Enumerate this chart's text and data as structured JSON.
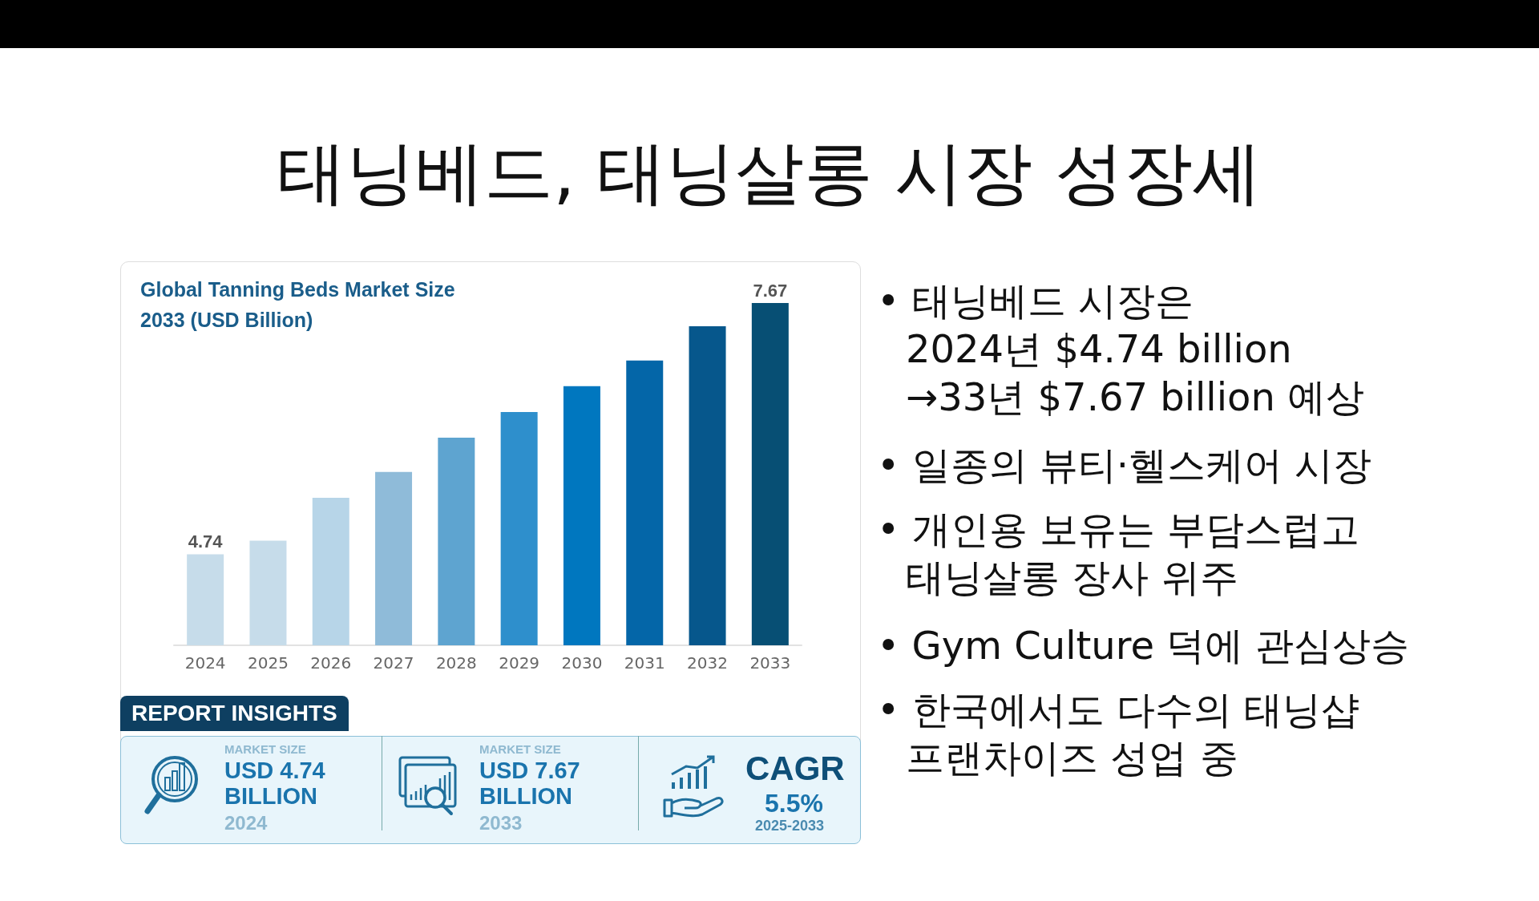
{
  "chart_data": {
    "type": "bar",
    "title": "태닝베드, 태닝살롱 시장 성장세",
    "subtitle": "Global Tanning Beds Market Size\n2033 (USD Billion)",
    "categories": [
      "2024",
      "2025",
      "2026",
      "2027",
      "2028",
      "2029",
      "2030",
      "2031",
      "2032",
      "2033"
    ],
    "values": [
      4.74,
      4.9,
      5.4,
      5.7,
      6.1,
      6.4,
      6.7,
      7.0,
      7.4,
      7.67
    ],
    "colors": [
      "#c6dcea",
      "#c6dcea",
      "#b7d5e8",
      "#8fbbd9",
      "#5ea4d0",
      "#2e8fcc",
      "#0077bf",
      "#0466a8",
      "#06578c",
      "#074f74"
    ],
    "value_labels": [
      "4.74",
      null,
      null,
      null,
      null,
      null,
      null,
      null,
      null,
      "7.67"
    ],
    "ylim": [
      3.68,
      7.67
    ],
    "tick_labels": "x",
    "annotations": [
      "• 태닝베드 시장은\n2024년 $4.74 billion\n→33년 $7.67 billion 예상",
      "• 일종의 뷰티·헬스케어 시장",
      "• 개인용 보유는 부담스럽고\n태닝살롱 장사 위주",
      "• Gym Culture 덕에 관심상승",
      "• 한국에서도 다수의 태닝샵\n프랜차이즈 성업 중",
      "REPORT INSIGHTS",
      "MARKET SIZE",
      "USD 4.74\nBILLION",
      "2024",
      "MARKET SIZE",
      "USD 7.67\nBILLION",
      "2033",
      "CAGR",
      "5.5%",
      "2025-2033"
    ]
  }
}
